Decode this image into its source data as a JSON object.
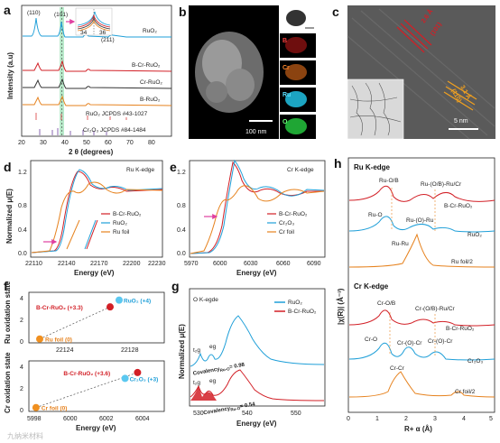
{
  "panels": {
    "a": {
      "label": "a",
      "ylabel": "Intensity (a.u)",
      "xlabel": "2 θ (degrees)",
      "xticks": [
        "20",
        "30",
        "40",
        "50",
        "60",
        "70",
        "80"
      ],
      "peaks": [
        "(110)",
        "(101)",
        "(211)"
      ],
      "inset_ticks": [
        "34",
        "36"
      ],
      "legend": [
        {
          "text": "RuO₂",
          "color": "#1f9fd8"
        },
        {
          "text": "B-Cr-RuO₂",
          "color": "#d21f26"
        },
        {
          "text": "Cr-RuO₂",
          "color": "#333333"
        },
        {
          "text": "B-RuO₂",
          "color": "#e6821e"
        },
        {
          "text": "RuO₂ JCPDS #43-1027",
          "color": "#e06060"
        },
        {
          "text": "Cr₂O₃ JCPDS #84-1484",
          "color": "#8a67b0"
        }
      ]
    },
    "b": {
      "label": "b",
      "scale": "100 nm",
      "maps": [
        {
          "el": "B",
          "color": "#d42020"
        },
        {
          "el": "Cr",
          "color": "#e0701a"
        },
        {
          "el": "Ru",
          "color": "#1fb6d6"
        },
        {
          "el": "O",
          "color": "#22b83a"
        }
      ]
    },
    "c": {
      "label": "c",
      "d1": "2.6 Å",
      "d1_plane": "(101)",
      "d2": "3.1 Å",
      "d2_plane": "(110)",
      "scale": "5 nm"
    },
    "d": {
      "label": "d",
      "title": "Ru K-edge",
      "ylabel": "Normalized μ(E)",
      "xlabel": "Energy (eV)",
      "xticks": [
        "22110",
        "22140",
        "22170",
        "22200",
        "22230"
      ],
      "yticks": [
        "0.0",
        "0.4",
        "0.8",
        "1.2"
      ],
      "legend": [
        {
          "text": "B-Cr-RuO₂",
          "color": "#d21f26"
        },
        {
          "text": "RuO₂",
          "color": "#1f9fd8"
        },
        {
          "text": "Ru foil",
          "color": "#e6821e"
        }
      ]
    },
    "e": {
      "label": "e",
      "title": "Cr K-edge",
      "xlabel": "Energy (eV)",
      "xticks": [
        "5970",
        "6000",
        "6030",
        "6060",
        "6090"
      ],
      "yticks": [
        "0.0",
        "0.4",
        "0.8",
        "1.2"
      ],
      "legend": [
        {
          "text": "B-Cr-RuO₂",
          "color": "#d21f26"
        },
        {
          "text": "Cr₂O₃",
          "color": "#1f9fd8"
        },
        {
          "text": "Cr foil",
          "color": "#e6821e"
        }
      ]
    },
    "f": {
      "label": "f",
      "top": {
        "ylabel": "Ru oxidation state",
        "xticks": [
          "22124",
          "22128"
        ],
        "yticks": [
          "0",
          "2",
          "4"
        ],
        "points": [
          {
            "label": "B-Cr-RuO₂ (+3.3)",
            "x": 22126.5,
            "y": 3.3,
            "color": "#d21f26"
          },
          {
            "label": "RuO₂ (+4)",
            "x": 22127.0,
            "y": 4.0,
            "color": "#5bc8f0"
          },
          {
            "label": "Ru foil (0)",
            "x": 22122.6,
            "y": 0.0,
            "color": "#f09020"
          }
        ]
      },
      "bottom": {
        "ylabel": "Cr oxidation state",
        "xlabel": "Energy (eV)",
        "xticks": [
          "5998",
          "6000",
          "6002",
          "6004"
        ],
        "yticks": [
          "0",
          "2",
          "4"
        ],
        "points": [
          {
            "label": "B-Cr-RuO₂ (+3.6)",
            "x": 6003.3,
            "y": 3.6,
            "color": "#d21f26"
          },
          {
            "label": "Cr₂O₃ (+3)",
            "x": 6002.6,
            "y": 3.0,
            "color": "#5bc8f0"
          },
          {
            "label": "Cr foil (0)",
            "x": 5997.6,
            "y": 0.0,
            "color": "#f09020"
          }
        ]
      }
    },
    "g": {
      "label": "g",
      "title": "O K-egde",
      "ylabel": "Normalized μ(E)",
      "xlabel": "Energy (eV)",
      "xticks": [
        "530",
        "540",
        "550"
      ],
      "legend": [
        {
          "text": "RuO₂",
          "color": "#1f9fd8"
        },
        {
          "text": "B-Cr-RuO₂",
          "color": "#d21f26"
        }
      ],
      "t2g": "t₂g",
      "eg": "eg",
      "cov1": "Covalency",
      "cov1_sub": "Ru-O",
      "cov1_val": "= 0.98",
      "cov2": "Covalency",
      "cov2_sub": "Ru-O",
      "cov2_val": "= 0.54"
    },
    "h": {
      "label": "h",
      "ylabel": "|χ(R)| (Å⁻³)",
      "xlabel": "R+ α (Å)",
      "xticks": [
        "0",
        "1",
        "2",
        "3",
        "4",
        "5"
      ],
      "ru_title": "Ru K-edge",
      "cr_title": "Cr K-edge",
      "ru_labels": [
        "Ru-O/B",
        "Ru-(O/B)-Ru/Cr",
        "Ru-O",
        "Ru-(O)-Ru",
        "Ru-Ru"
      ],
      "cr_labels": [
        "Cr-O/B",
        "Cr-(O/B)-Ru/Cr",
        "Cr-O",
        "Cr-(O)-Cr",
        "Cr-(O)-Cr",
        "Cr-Cr"
      ],
      "ru_legend": [
        "B-Cr-RuO₂",
        "RuO₂",
        "Ru foil/2"
      ],
      "cr_legend": [
        "B-Cr-RuO₂",
        "Cr₂O₃",
        "Cr foil/2"
      ]
    }
  },
  "watermark": "九纳米材料",
  "colors": {
    "red": "#d21f26",
    "blue": "#1f9fd8",
    "orange": "#e6821e",
    "dark": "#333333"
  }
}
